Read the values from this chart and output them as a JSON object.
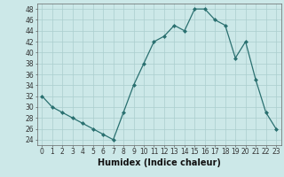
{
  "x": [
    0,
    1,
    2,
    3,
    4,
    5,
    6,
    7,
    8,
    9,
    10,
    11,
    12,
    13,
    14,
    15,
    16,
    17,
    18,
    19,
    20,
    21,
    22,
    23
  ],
  "y": [
    32,
    30,
    29,
    28,
    27,
    26,
    25,
    24,
    29,
    34,
    38,
    42,
    43,
    45,
    44,
    48,
    48,
    46,
    45,
    39,
    42,
    35,
    29,
    26
  ],
  "xlabel": "Humidex (Indice chaleur)",
  "ylim": [
    23,
    49
  ],
  "yticks": [
    24,
    26,
    28,
    30,
    32,
    34,
    36,
    38,
    40,
    42,
    44,
    46,
    48
  ],
  "xticks": [
    0,
    1,
    2,
    3,
    4,
    5,
    6,
    7,
    8,
    9,
    10,
    11,
    12,
    13,
    14,
    15,
    16,
    17,
    18,
    19,
    20,
    21,
    22,
    23
  ],
  "line_color": "#2a7070",
  "marker_color": "#2a7070",
  "bg_color": "#cce8e8",
  "grid_color": "#aacece",
  "tick_label_fontsize": 5.5,
  "xlabel_fontsize": 7.0
}
